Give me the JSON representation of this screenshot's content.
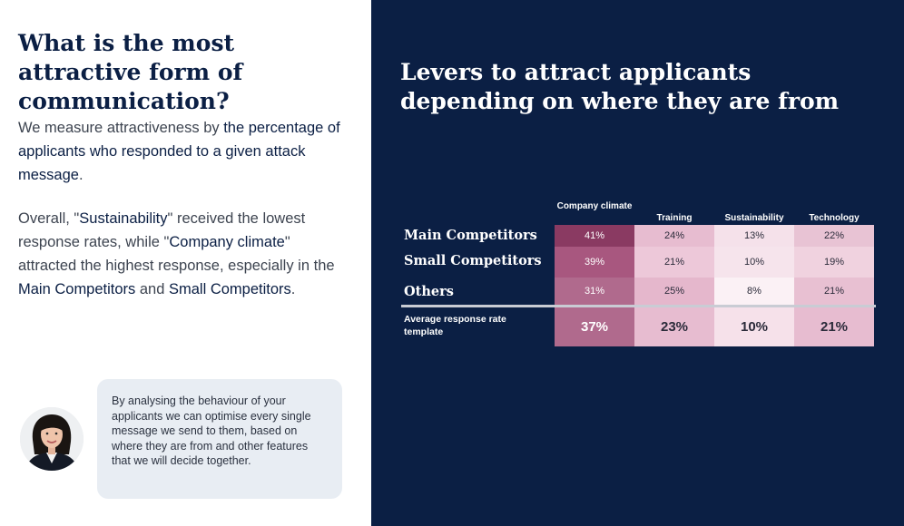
{
  "left": {
    "title": "What is the most attractive form of communication?",
    "para1": {
      "a": "We measure attractiveness by ",
      "b": "the percentage of applicants who responded to a given attack message",
      "c": "."
    },
    "para2": {
      "a": "Overall, \"",
      "b": "Sustainability",
      "c": "\" received the lowest response rates, while \"",
      "d": "Company climate",
      "e": "\" attracted the highest response, especially in the ",
      "f": "Main Competitors",
      "g": " and ",
      "h": "Small Competitors",
      "i": "."
    },
    "quote": "By analysing the behaviour of your applicants we can optimise every single message we send to them, based on where they are from and other features that we will decide together.",
    "avatar_icon": "person-avatar-icon"
  },
  "right": {
    "title": "Levers to attract applicants depending on where they are from"
  },
  "chart_data": {
    "type": "table",
    "columns": [
      "Company climate",
      "Training",
      "Sustainability",
      "Technology"
    ],
    "rows": [
      {
        "label": "Main Competitors",
        "values": [
          41,
          24,
          13,
          22
        ],
        "display": [
          "41%",
          "24%",
          "13%",
          "22%"
        ]
      },
      {
        "label": "Small Competitors",
        "values": [
          39,
          21,
          10,
          19
        ],
        "display": [
          "39%",
          "21%",
          "10%",
          "19%"
        ]
      },
      {
        "label": "Others",
        "values": [
          31,
          25,
          8,
          21
        ],
        "display": [
          "31%",
          "25%",
          "8%",
          "21%"
        ]
      }
    ],
    "average": {
      "label": "Average response rate template",
      "values": [
        37,
        23,
        10,
        21
      ],
      "display": [
        "37%",
        "23%",
        "10%",
        "21%"
      ]
    },
    "colors": {
      "background": "#0b1f44",
      "cells": [
        [
          "#8a3a62",
          "#e7bcd0",
          "#f5e1ea",
          "#e8c3d4"
        ],
        [
          "#a8577f",
          "#edc8d9",
          "#f6e4ec",
          "#f0d2df"
        ],
        [
          "#b06a8d",
          "#e5b7cc",
          "#fbf1f5",
          "#e8c0d2"
        ]
      ],
      "average": [
        "#b06a8d",
        "#e7bcd0",
        "#f6e1ea",
        "#e7bcd0"
      ]
    }
  }
}
